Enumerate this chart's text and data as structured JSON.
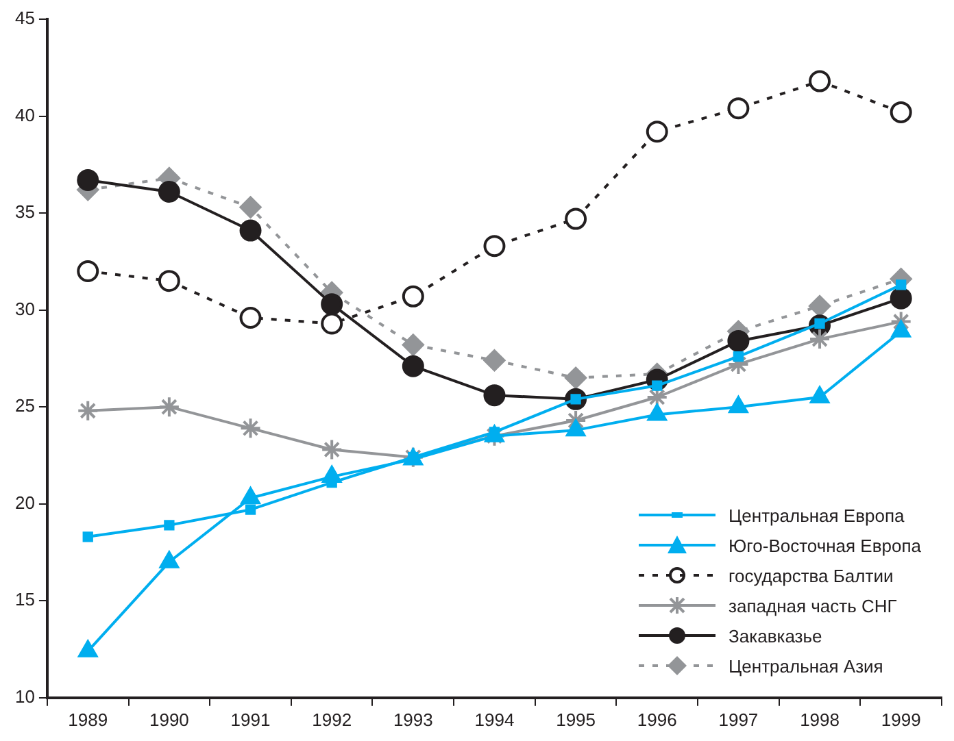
{
  "chart_data": {
    "type": "line",
    "categories": [
      "1989",
      "1990",
      "1991",
      "1992",
      "1993",
      "1994",
      "1995",
      "1996",
      "1997",
      "1998",
      "1999"
    ],
    "ylim": [
      10,
      45
    ],
    "yticks": [
      10,
      15,
      20,
      25,
      30,
      35,
      40,
      45
    ],
    "grid": false,
    "legend": "bottom right",
    "series": [
      {
        "name": "Центральная Европа",
        "color": "#00aeef",
        "marker": "square",
        "line_style": "solid",
        "values": [
          18.3,
          18.9,
          19.7,
          21.1,
          22.4,
          23.7,
          25.4,
          26.1,
          27.6,
          29.3,
          31.3
        ]
      },
      {
        "name": "Юго-Восточная Европа",
        "color": "#00aeef",
        "marker": "triangle",
        "line_style": "solid",
        "values": [
          12.4,
          17.0,
          20.3,
          21.4,
          22.3,
          23.5,
          23.8,
          24.6,
          25.0,
          25.5,
          28.9
        ]
      },
      {
        "name": "государства Балтии",
        "color": "#231f20",
        "marker": "circle",
        "line_style": "dashed",
        "values": [
          32.0,
          31.5,
          29.6,
          29.3,
          30.7,
          33.3,
          34.7,
          39.2,
          40.4,
          41.8,
          40.2
        ]
      },
      {
        "name": "западная часть СНГ",
        "color": "#939598",
        "marker": "cross",
        "line_style": "solid",
        "values": [
          24.8,
          25.0,
          23.9,
          22.8,
          22.4,
          23.5,
          24.3,
          25.5,
          27.2,
          28.5,
          29.4
        ]
      },
      {
        "name": "Закавказье",
        "color": "#231f20",
        "marker": "circle",
        "line_style": "solid",
        "values": [
          36.7,
          36.1,
          34.1,
          30.3,
          27.1,
          25.6,
          25.4,
          26.4,
          28.4,
          29.2,
          30.6
        ]
      },
      {
        "name": "Центральная Азия",
        "color": "#939598",
        "marker": "diamond",
        "line_style": "dashed",
        "values": [
          36.2,
          36.8,
          35.3,
          30.9,
          28.2,
          27.4,
          26.5,
          26.7,
          28.9,
          30.2,
          31.6
        ]
      }
    ]
  }
}
